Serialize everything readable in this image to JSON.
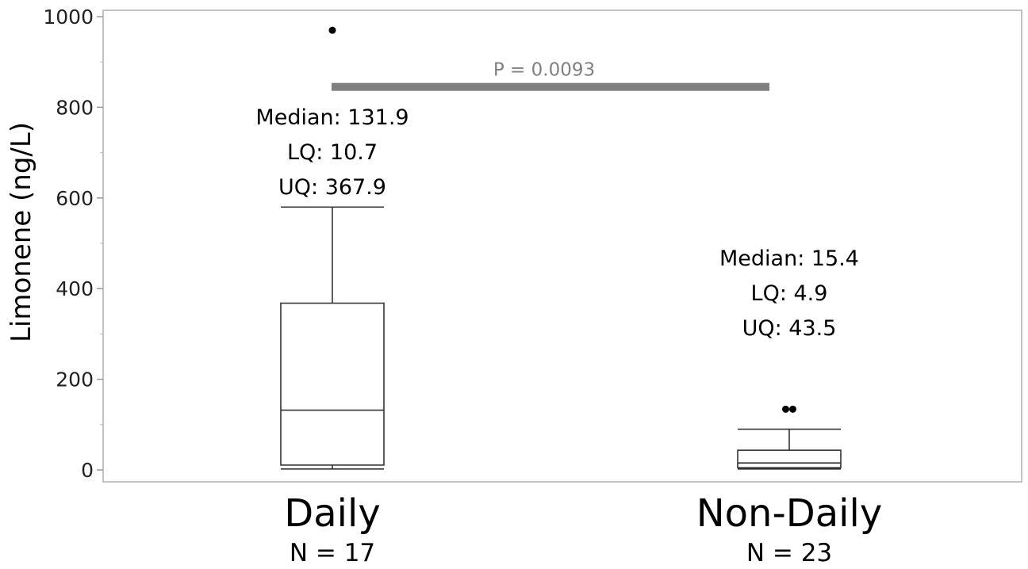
{
  "chart_data": {
    "type": "box",
    "ylabel": "Limonene (ng/L)",
    "ylim": [
      0,
      1000
    ],
    "yticks": [
      0,
      200,
      400,
      600,
      800,
      1000
    ],
    "grid": false,
    "groups": [
      {
        "name": "Daily",
        "n_label": "N = 17",
        "whisker_low": 2,
        "q1": 10.7,
        "median": 131.9,
        "q3": 367.9,
        "whisker_high": 580,
        "outliers": [
          970
        ],
        "stats": [
          "Median: 131.9",
          "LQ: 10.7",
          "UQ: 367.9"
        ]
      },
      {
        "name": "Non-Daily",
        "n_label": "N = 23",
        "whisker_low": 2,
        "q1": 4.9,
        "median": 15.4,
        "q3": 43.5,
        "whisker_high": 90,
        "outliers": [
          134,
          134
        ],
        "stats": [
          "Median: 15.4",
          "LQ: 4.9",
          "UQ: 43.5"
        ]
      }
    ],
    "comparison": {
      "label": "P = 0.0093",
      "y": 845,
      "from": "Daily",
      "to": "Non-Daily"
    }
  }
}
